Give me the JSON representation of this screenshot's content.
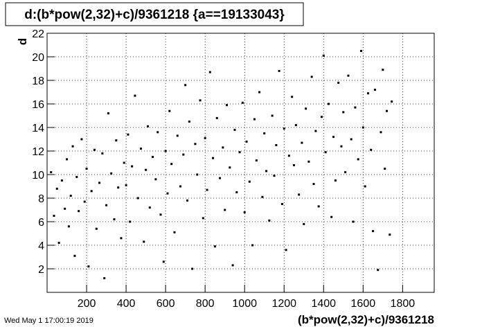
{
  "chart_data": {
    "type": "scatter",
    "title": "d:(b*pow(2,32)+c)/9361218 {a==19133043}",
    "x_label": "(b*pow(2,32)+c)/9361218",
    "y_label": "d",
    "timestamp": "Wed May  1 17:00:19 2019",
    "color": "#000000",
    "grid": true,
    "xlim": [
      0,
      1960
    ],
    "ylim": [
      0,
      22
    ],
    "xticks": [
      200,
      400,
      600,
      800,
      1000,
      1200,
      1400,
      1600,
      1800
    ],
    "yticks": [
      2,
      4,
      6,
      8,
      10,
      12,
      14,
      16,
      18,
      20,
      22
    ],
    "x": [
      20,
      35,
      50,
      60,
      75,
      90,
      100,
      110,
      120,
      130,
      140,
      150,
      160,
      175,
      190,
      200,
      210,
      225,
      240,
      250,
      265,
      280,
      290,
      300,
      310,
      325,
      340,
      350,
      360,
      375,
      390,
      400,
      410,
      420,
      430,
      445,
      460,
      475,
      490,
      500,
      510,
      520,
      535,
      550,
      560,
      575,
      590,
      600,
      610,
      620,
      630,
      645,
      660,
      675,
      690,
      700,
      710,
      720,
      735,
      750,
      760,
      775,
      790,
      800,
      810,
      825,
      840,
      850,
      860,
      875,
      890,
      900,
      910,
      925,
      940,
      950,
      960,
      975,
      990,
      1000,
      1010,
      1025,
      1040,
      1050,
      1060,
      1075,
      1090,
      1100,
      1110,
      1125,
      1140,
      1150,
      1160,
      1175,
      1190,
      1200,
      1210,
      1225,
      1240,
      1250,
      1260,
      1275,
      1290,
      1300,
      1310,
      1325,
      1340,
      1350,
      1360,
      1375,
      1390,
      1400,
      1410,
      1425,
      1440,
      1450,
      1460,
      1475,
      1490,
      1500,
      1510,
      1525,
      1540,
      1550,
      1560,
      1575,
      1590,
      1600,
      1610,
      1625,
      1640,
      1650,
      1660,
      1675,
      1690,
      1700,
      1710,
      1720,
      1735,
      1745
    ],
    "values": [
      10.2,
      6.5,
      8.8,
      4.2,
      9.5,
      7.1,
      11.3,
      5.6,
      8.2,
      12.4,
      3.1,
      9.8,
      6.9,
      13.0,
      7.7,
      10.5,
      2.2,
      8.6,
      12.1,
      5.4,
      9.3,
      11.8,
      1.2,
      7.4,
      15.2,
      10.1,
      6.2,
      12.9,
      8.9,
      4.6,
      11.0,
      9.1,
      13.4,
      6.0,
      10.7,
      16.7,
      8.0,
      12.2,
      4.3,
      10.4,
      14.1,
      7.2,
      11.5,
      9.6,
      13.6,
      6.6,
      2.6,
      12.0,
      8.4,
      15.4,
      10.9,
      5.1,
      13.3,
      9.0,
      11.7,
      17.6,
      7.8,
      14.5,
      2.0,
      12.6,
      10.0,
      16.3,
      6.3,
      13.1,
      8.7,
      18.7,
      11.4,
      3.9,
      14.8,
      9.7,
      12.3,
      7.0,
      15.9,
      10.6,
      2.3,
      13.8,
      8.5,
      11.9,
      16.1,
      6.8,
      12.8,
      9.4,
      4.0,
      14.7,
      11.2,
      17.0,
      8.1,
      13.5,
      10.3,
      6.1,
      15.0,
      9.9,
      12.5,
      18.8,
      7.5,
      13.9,
      3.6,
      11.6,
      16.6,
      10.8,
      14.2,
      8.3,
      12.7,
      5.8,
      15.6,
      11.1,
      18.3,
      9.2,
      13.7,
      7.3,
      14.9,
      20.1,
      11.9,
      16.0,
      6.4,
      13.2,
      9.5,
      17.8,
      12.4,
      15.3,
      10.2,
      18.4,
      13.0,
      6.0,
      15.7,
      11.3,
      20.5,
      14.0,
      9.0,
      16.9,
      12.1,
      5.2,
      17.2,
      1.9,
      13.6,
      18.9,
      10.5,
      15.4,
      4.9,
      16.2
    ]
  }
}
